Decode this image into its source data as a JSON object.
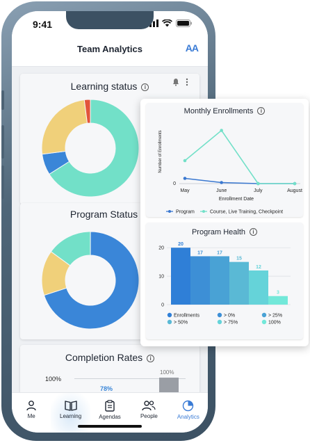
{
  "status_bar": {
    "time": "9:41"
  },
  "header": {
    "title": "Team Analytics",
    "text_size_glyph": "AA"
  },
  "learning_status": {
    "title": "Learning status",
    "chart_data": {
      "type": "pie",
      "values": [
        66,
        7,
        25,
        2
      ],
      "colors": [
        "#72e0c8",
        "#3a86d8",
        "#f0d07a",
        "#e2543b"
      ]
    }
  },
  "program_status": {
    "title": "Program Status",
    "chart_data": {
      "type": "pie",
      "values": [
        70,
        15,
        15
      ],
      "colors": [
        "#3a86d8",
        "#f0d07a",
        "#72e0c8"
      ]
    }
  },
  "completion_rates": {
    "title": "Completion Rates",
    "y_label": "100%",
    "bar_labels": [
      "78%",
      "100%"
    ]
  },
  "monthly_enrollments": {
    "title": "Monthly Enrollments",
    "chart_data": {
      "type": "line",
      "categories": [
        "May",
        "June",
        "July",
        "August"
      ],
      "xlabel": "Enrollment Date",
      "ylabel": "Number of Enrollments",
      "ylim": [
        0,
        3
      ],
      "y_ticks": [
        "0"
      ],
      "series": [
        {
          "name": "Program",
          "values": [
            0.25,
            0.05,
            0.0,
            0.0
          ],
          "color": "#3a78d0"
        },
        {
          "name": "Course, Live Training, Checkpoint",
          "values": [
            1.1,
            2.55,
            0.0,
            0.0
          ],
          "color": "#72e0c8"
        }
      ]
    }
  },
  "program_health": {
    "title": "Program Health",
    "chart_data": {
      "type": "bar",
      "categories": [
        "Enrollments",
        "> 0%",
        "> 25%",
        "> 50%",
        "> 75%",
        "100%"
      ],
      "values": [
        20,
        17,
        17,
        15,
        12,
        3
      ],
      "colors": [
        "#2f7fd7",
        "#3d8fd6",
        "#49a2d5",
        "#5ab9d5",
        "#65d3d9",
        "#72e8d9"
      ],
      "ylim": [
        0,
        22
      ],
      "y_ticks": [
        "0",
        "10",
        "20"
      ]
    }
  },
  "bottom_nav": {
    "items": [
      {
        "label": "Me"
      },
      {
        "label": "Learning"
      },
      {
        "label": "Agendas"
      },
      {
        "label": "People"
      },
      {
        "label": "Analytics"
      }
    ]
  }
}
